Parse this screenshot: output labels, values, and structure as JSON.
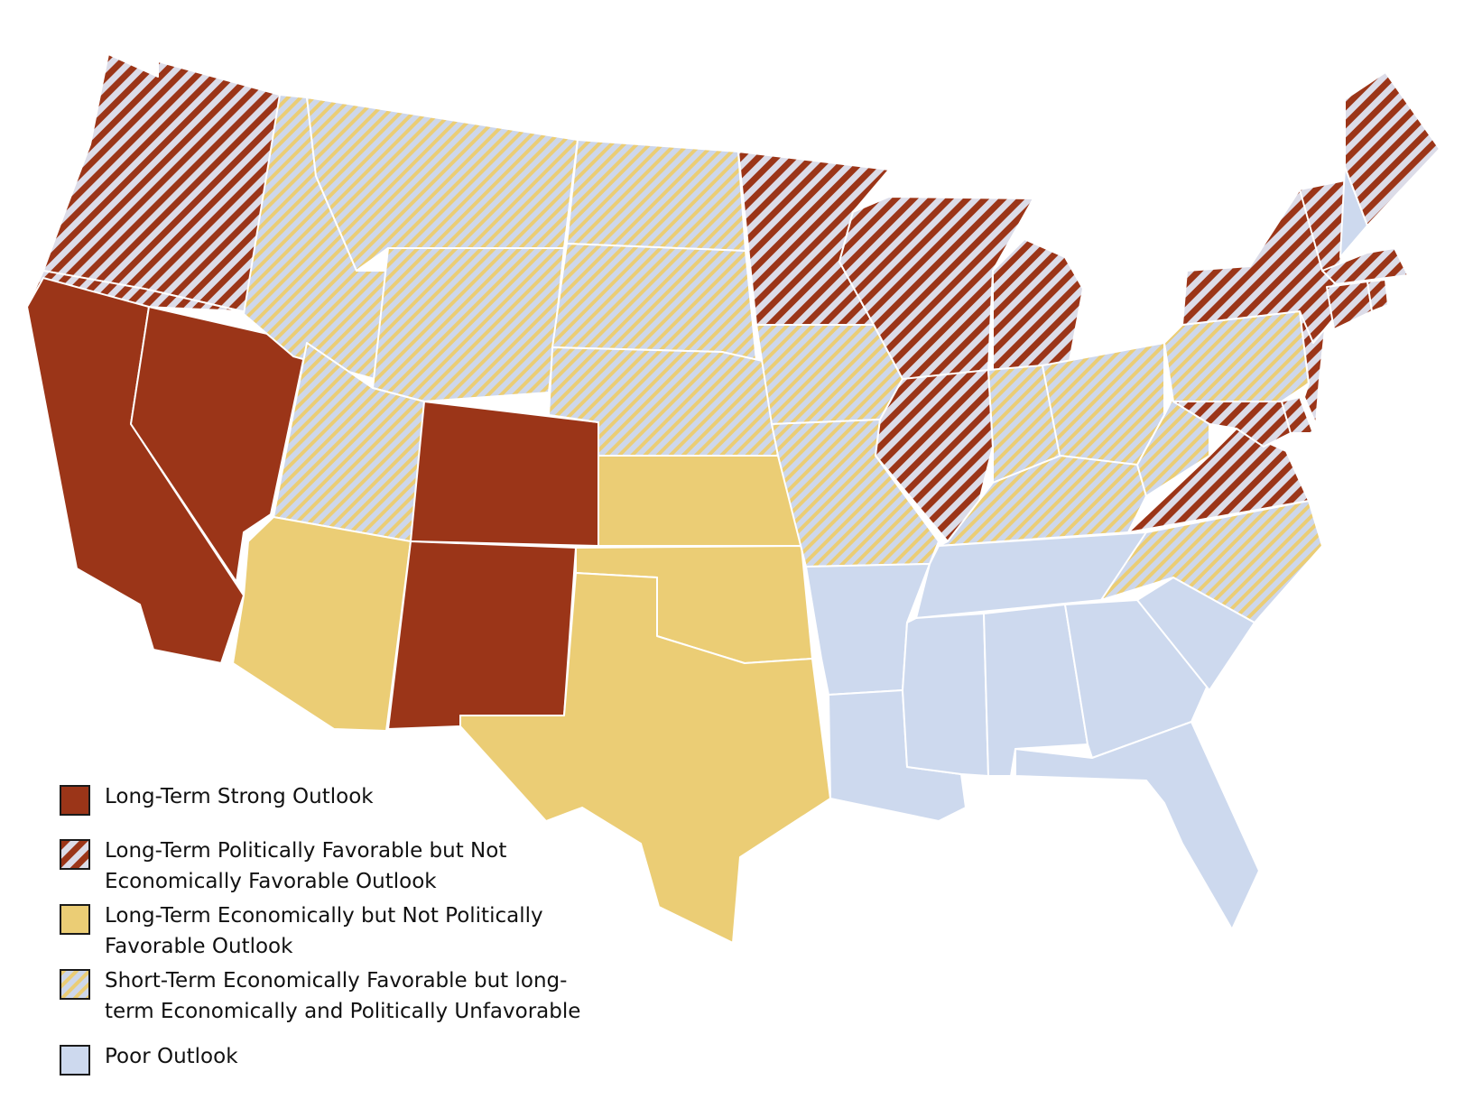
{
  "colors": {
    "strong": "#9B3518",
    "political_stripe": "#9B3518",
    "political_bg": "#DCDCE8",
    "economic": "#EBCD75",
    "short_stripe": "#EBCD75",
    "short_bg": "#CDD7EB",
    "poor": "#CDD9EE",
    "border": "#ffffff"
  },
  "legend": [
    {
      "category": "strong",
      "label": "Long-Term Strong Outlook"
    },
    {
      "category": "political",
      "label": "Long-Term Politically Favorable but Not\nEconomically Favorable Outlook"
    },
    {
      "category": "economic",
      "label": "Long-Term Economically but Not Politically\nFavorable Outlook"
    },
    {
      "category": "short",
      "label": "Short-Term Economically Favorable but long-\nterm Economically and Politically Unfavorable"
    },
    {
      "category": "poor",
      "label": "Poor Outlook"
    }
  ],
  "regions": [
    {
      "name": "Washington",
      "category": "political"
    },
    {
      "name": "Oregon",
      "category": "political"
    },
    {
      "name": "California",
      "category": "strong"
    },
    {
      "name": "Nevada",
      "category": "strong"
    },
    {
      "name": "Idaho",
      "category": "short"
    },
    {
      "name": "Montana",
      "category": "short"
    },
    {
      "name": "Wyoming",
      "category": "short"
    },
    {
      "name": "Utah",
      "category": "short"
    },
    {
      "name": "Colorado",
      "category": "strong"
    },
    {
      "name": "Arizona",
      "category": "economic"
    },
    {
      "name": "New Mexico",
      "category": "strong"
    },
    {
      "name": "North Dakota",
      "category": "short"
    },
    {
      "name": "South Dakota",
      "category": "short"
    },
    {
      "name": "Nebraska",
      "category": "short"
    },
    {
      "name": "Kansas",
      "category": "economic"
    },
    {
      "name": "Oklahoma",
      "category": "economic"
    },
    {
      "name": "Texas",
      "category": "economic"
    },
    {
      "name": "Minnesota",
      "category": "political"
    },
    {
      "name": "Iowa",
      "category": "short"
    },
    {
      "name": "Missouri",
      "category": "short"
    },
    {
      "name": "Arkansas",
      "category": "poor"
    },
    {
      "name": "Louisiana",
      "category": "poor"
    },
    {
      "name": "Wisconsin",
      "category": "political"
    },
    {
      "name": "Illinois",
      "category": "political"
    },
    {
      "name": "Michigan",
      "category": "political"
    },
    {
      "name": "Indiana",
      "category": "short"
    },
    {
      "name": "Ohio",
      "category": "short"
    },
    {
      "name": "Kentucky",
      "category": "short"
    },
    {
      "name": "Tennessee",
      "category": "poor"
    },
    {
      "name": "Mississippi",
      "category": "poor"
    },
    {
      "name": "Alabama",
      "category": "poor"
    },
    {
      "name": "Georgia",
      "category": "poor"
    },
    {
      "name": "Florida",
      "category": "poor"
    },
    {
      "name": "South Carolina",
      "category": "poor"
    },
    {
      "name": "North Carolina",
      "category": "short"
    },
    {
      "name": "Virginia",
      "category": "political"
    },
    {
      "name": "West Virginia",
      "category": "short"
    },
    {
      "name": "Pennsylvania",
      "category": "short"
    },
    {
      "name": "New York",
      "category": "political"
    },
    {
      "name": "New Jersey",
      "category": "political"
    },
    {
      "name": "Delaware",
      "category": "political"
    },
    {
      "name": "Maryland",
      "category": "political"
    },
    {
      "name": "Connecticut",
      "category": "political"
    },
    {
      "name": "Rhode Island",
      "category": "political"
    },
    {
      "name": "Massachusetts",
      "category": "political"
    },
    {
      "name": "Vermont",
      "category": "political"
    },
    {
      "name": "New Hampshire",
      "category": "poor"
    },
    {
      "name": "Maine",
      "category": "political"
    }
  ]
}
